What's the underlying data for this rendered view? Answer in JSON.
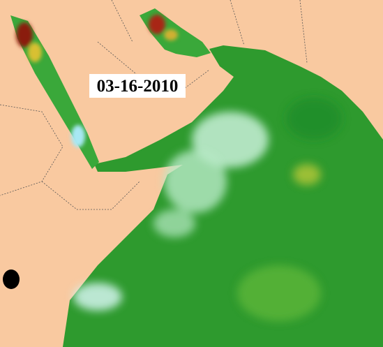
{
  "date_label": "03-16-2010"
}
